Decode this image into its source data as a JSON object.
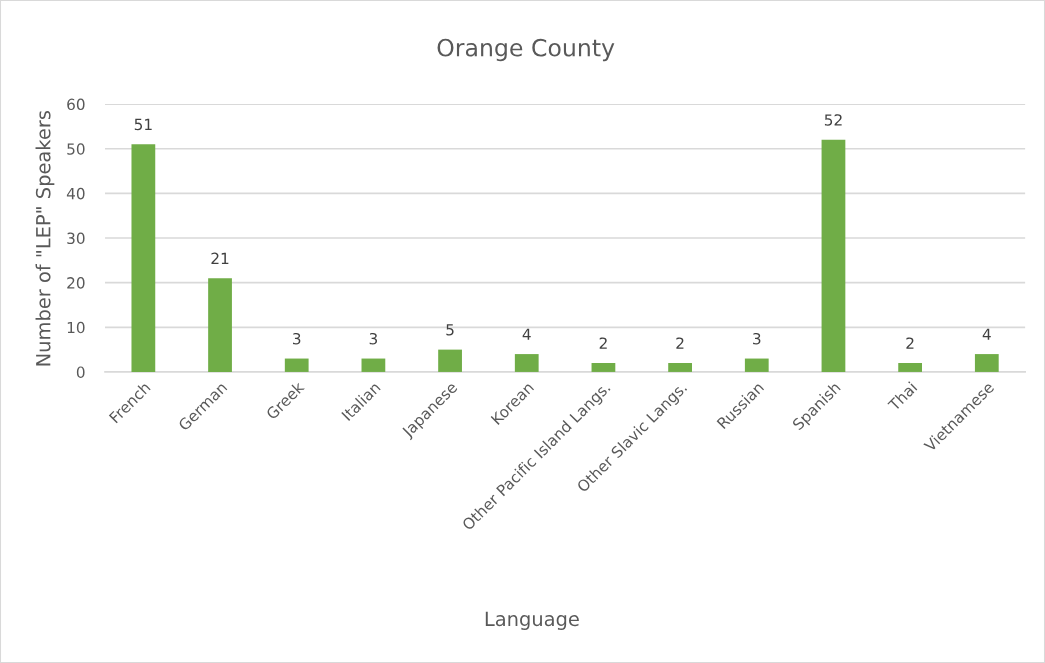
{
  "chart_data": {
    "type": "bar",
    "title": "Orange County",
    "xlabel": "Language",
    "ylabel": "Number of \"LEP\" Speakers",
    "categories": [
      "French",
      "German",
      "Greek",
      "Italian",
      "Japanese",
      "Korean",
      "Other Pacific Island Langs.",
      "Other Slavic Langs.",
      "Russian",
      "Spanish",
      "Thai",
      "Vietnamese"
    ],
    "values": [
      51,
      21,
      3,
      3,
      5,
      4,
      2,
      2,
      3,
      52,
      2,
      4
    ],
    "color": "#70ad47",
    "ylim": [
      0,
      60
    ],
    "yticks": [
      0,
      10,
      20,
      30,
      40,
      50,
      60
    ],
    "grid": "y",
    "data_labels": true
  }
}
